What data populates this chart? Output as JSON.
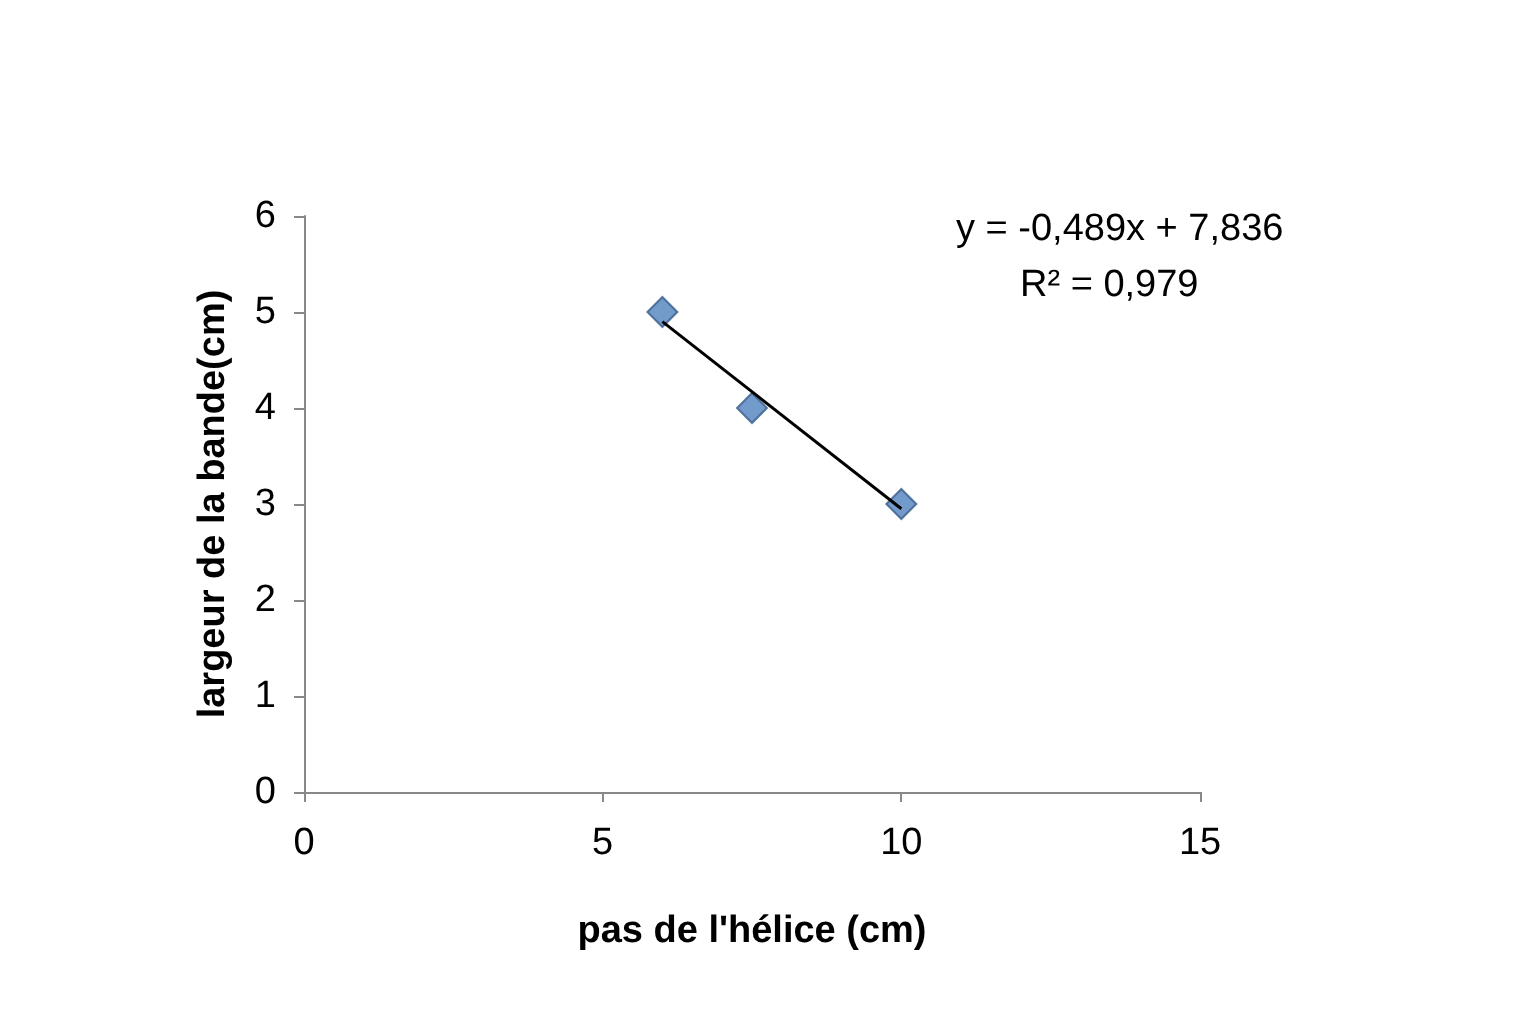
{
  "chart_data": {
    "type": "scatter",
    "xlabel": "pas de l'hélice (cm)",
    "ylabel": "largeur de la bande(cm)",
    "annotations": [
      "y = -0,489x + 7,836",
      "R² = 0,979"
    ],
    "x": [
      6,
      7.5,
      10
    ],
    "series": [
      {
        "color": "#4f81bd",
        "values": [
          5,
          4,
          3
        ],
        "marker": "diamond"
      },
      {
        "type": "line",
        "x": [
          6,
          10
        ],
        "values": [
          4.9,
          2.95
        ],
        "color": "#000000",
        "marker": "none"
      }
    ],
    "xlim": [
      0,
      15
    ],
    "xticks": [
      0,
      5,
      10,
      15
    ],
    "ylim": [
      0,
      6
    ],
    "yticks": [
      0,
      1,
      2,
      3,
      4,
      5,
      6
    ]
  }
}
